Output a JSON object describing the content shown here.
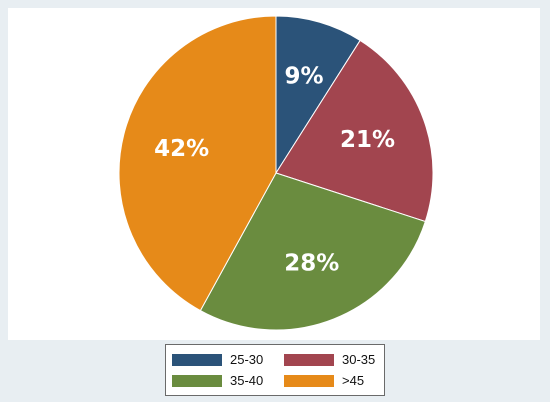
{
  "chart_data": {
    "type": "pie",
    "categories": [
      "25-30",
      "30-35",
      "35-40",
      ">45"
    ],
    "values": [
      9,
      21,
      28,
      42
    ],
    "labels": [
      "9%",
      "21%",
      "28%",
      "42%"
    ],
    "colors": [
      "#2b5379",
      "#a2454f",
      "#6a8c3f",
      "#e68a19"
    ],
    "title": "",
    "legend_position": "bottom",
    "start_angle": "12 o'clock",
    "direction": "clockwise"
  }
}
